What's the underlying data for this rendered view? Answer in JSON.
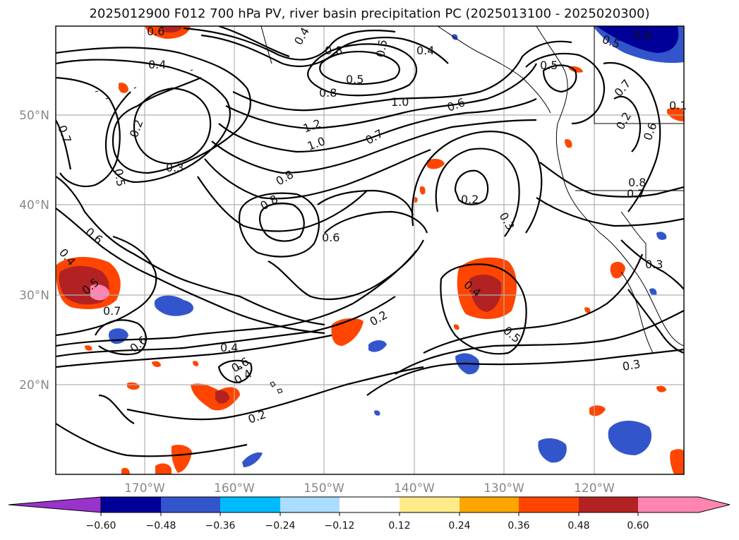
{
  "title": "2025012900 F012 700 hPa PV, river basin precipitation PC (2025013100 - 2025020300)",
  "lat_labels": [
    "50°N",
    "40°N",
    "30°N",
    "20°N"
  ],
  "lon_labels": [
    "170°W",
    "160°W",
    "150°W",
    "140°W",
    "130°W",
    "120°W"
  ],
  "contour_labels": [
    "0.6",
    "0.4",
    "0.7",
    "0.6",
    "0.5",
    "0.4",
    "0.5",
    "0.4",
    "0.5",
    "0.8",
    "0.8",
    "1.0",
    "0.6",
    "0.5",
    "0.2",
    "0.3",
    "0.5",
    "1.2",
    "1.0",
    "0.7",
    "0.2",
    "0.8",
    "0.8",
    "0.6",
    "0.3",
    "0.6",
    "0.4",
    "0.5",
    "0.7",
    "0.6",
    "0.4",
    "0.4",
    "0.4",
    "0.2",
    "0.5",
    "0.2",
    "0.3",
    "0.3",
    "0.4",
    "0.2",
    "0.8",
    "0.7",
    "0.6",
    "0.7",
    "0.1"
  ],
  "colorbar": {
    "colors": [
      "#9933cc",
      "#000099",
      "#3355cc",
      "#00bbff",
      "#aaddff",
      "#ffffff",
      "#ffeb8a",
      "#ffa500",
      "#ff4500",
      "#b22222",
      "#ff85b0"
    ],
    "tick_labels": [
      "−0.60",
      "−0.48",
      "−0.36",
      "−0.24",
      "−0.12",
      "0.12",
      "0.24",
      "0.36",
      "0.48",
      "0.60"
    ]
  }
}
